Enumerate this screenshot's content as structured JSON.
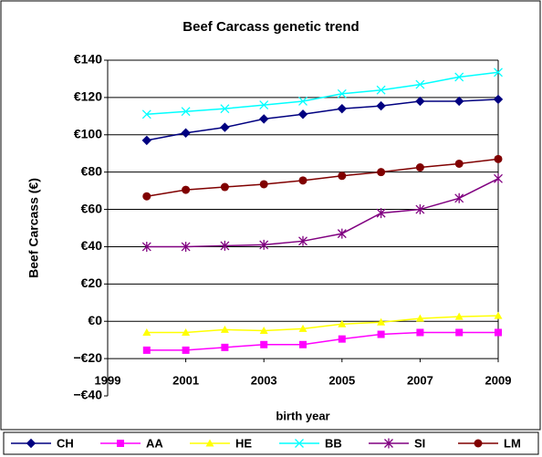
{
  "chart_data": {
    "type": "line",
    "title": "Beef Carcass genetic trend",
    "x_label": "birth year",
    "y_label": "Beef Carcass (€)",
    "x": [
      2000,
      2001,
      2002,
      2003,
      2004,
      2005,
      2006,
      2007,
      2008,
      2009
    ],
    "xlim": [
      1999,
      2009
    ],
    "xticks": [
      1999,
      2001,
      2003,
      2005,
      2007,
      2009
    ],
    "ylim": [
      -40,
      140
    ],
    "yticks": [
      {
        "value": -40,
        "label": "−€40"
      },
      {
        "value": -20,
        "label": "−€20"
      },
      {
        "value": 0,
        "label": "€0"
      },
      {
        "value": 20,
        "label": "€20"
      },
      {
        "value": 40,
        "label": "€40"
      },
      {
        "value": 60,
        "label": "€60"
      },
      {
        "value": 80,
        "label": "€80"
      },
      {
        "value": 100,
        "label": "€100"
      },
      {
        "value": 120,
        "label": "€120"
      },
      {
        "value": 140,
        "label": "€140"
      }
    ],
    "grid": true,
    "legend": "bottom",
    "series": [
      {
        "name": "CH",
        "color": "#000080",
        "marker": "diamond",
        "values": [
          97,
          101,
          104,
          108.5,
          111,
          114,
          115.5,
          118,
          118,
          119
        ]
      },
      {
        "name": "AA",
        "color": "#ff00ff",
        "marker": "square",
        "values": [
          -15.5,
          -15.5,
          -14,
          -12.5,
          -12.5,
          -9.5,
          -7,
          -6,
          -6,
          -6
        ]
      },
      {
        "name": "HE",
        "color": "#ffff00",
        "marker": "triangle",
        "values": [
          -6,
          -6,
          -4.5,
          -5,
          -4,
          -1.5,
          -0.5,
          1.5,
          2.5,
          3
        ]
      },
      {
        "name": "BB",
        "color": "#00ffff",
        "marker": "x",
        "values": [
          111,
          112.5,
          114,
          116,
          118,
          122,
          124,
          127,
          131,
          133.5
        ]
      },
      {
        "name": "SI",
        "color": "#800080",
        "marker": "star",
        "values": [
          40,
          40,
          40.5,
          41,
          43,
          47,
          58,
          60,
          66,
          76.5
        ]
      },
      {
        "name": "LM",
        "color": "#800000",
        "marker": "circle",
        "values": [
          67,
          70.5,
          72,
          73.5,
          75.5,
          78,
          80,
          82.5,
          84.5,
          87
        ]
      }
    ]
  }
}
